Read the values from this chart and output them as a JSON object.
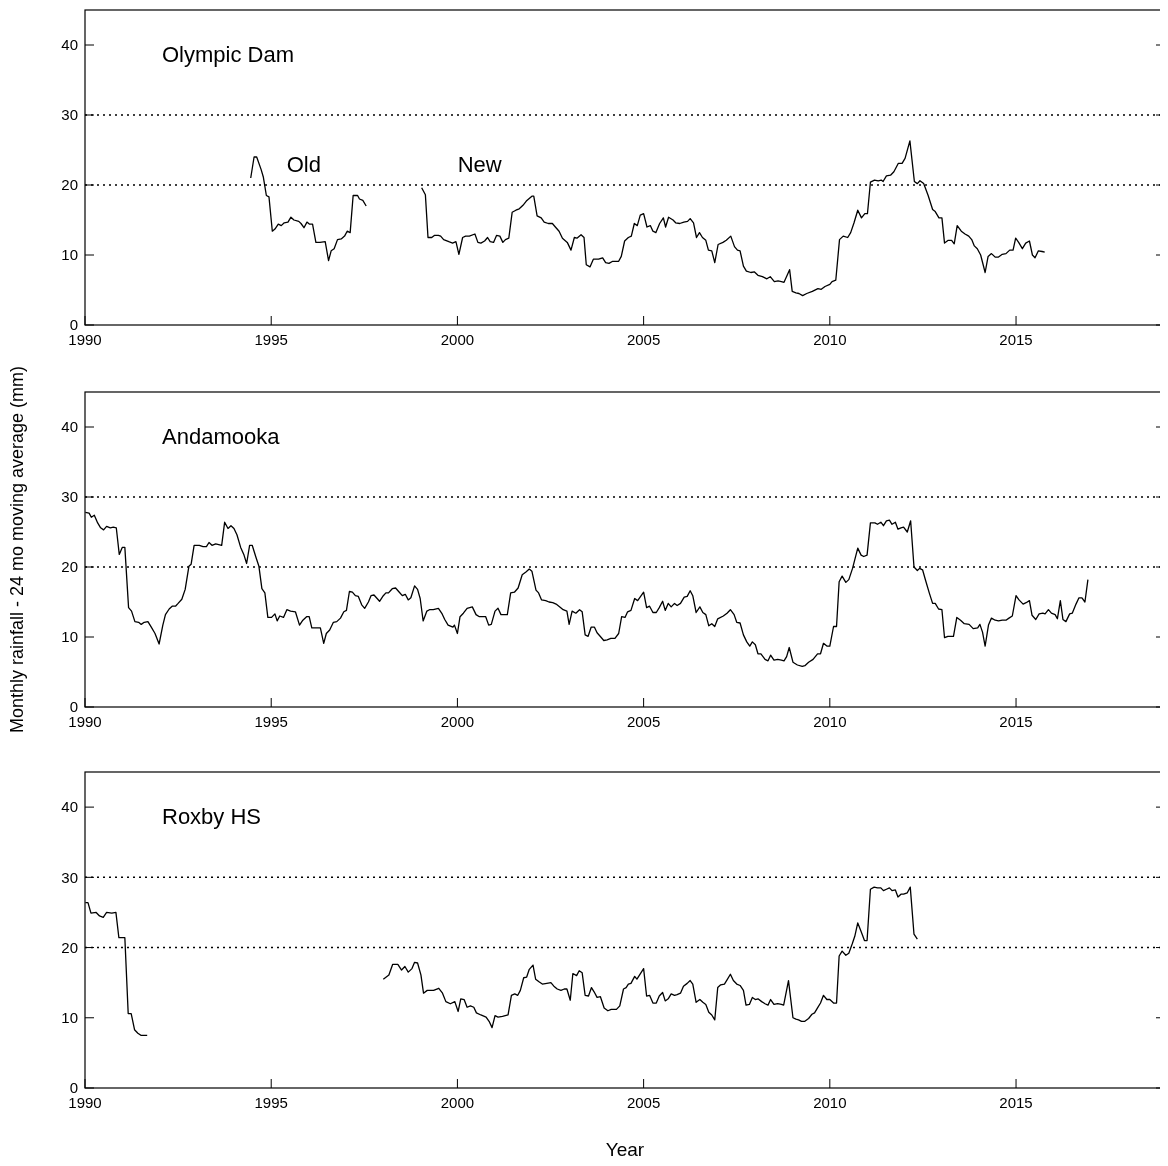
{
  "chart_data": [
    {
      "type": "line",
      "title": "Olympic Dam",
      "xlim": [
        1990,
        2019
      ],
      "xticks": [
        1990,
        1995,
        2000,
        2005,
        2010,
        2015
      ],
      "ylim": [
        0,
        45
      ],
      "yticks": [
        0,
        10,
        20,
        30,
        40
      ],
      "ref_lines": [
        {
          "axis": "y",
          "value": 20,
          "line_style": "dotted"
        },
        {
          "axis": "y",
          "value": 30,
          "line_style": "dotted"
        }
      ],
      "series": [
        {
          "name": "Old",
          "color": "#000000",
          "x": [
            1994.45,
            1994.54,
            1994.61,
            1994.73,
            1994.79,
            1994.87,
            1994.94,
            1995.03,
            1995.1,
            1995.19,
            1995.27,
            1995.35,
            1995.45,
            1995.53,
            1995.61,
            1995.74,
            1995.8,
            1995.88,
            1995.96,
            1996.03,
            1996.11,
            1996.2,
            1996.31,
            1996.45,
            1996.54,
            1996.61,
            1996.69,
            1996.78,
            1996.88,
            1996.97,
            1997.04,
            1997.12,
            1997.2,
            1997.32,
            1997.37,
            1997.46,
            1997.55
          ],
          "values": [
            21.0,
            24.0,
            24.0,
            22.2,
            21.1,
            18.5,
            18.3,
            13.4,
            13.7,
            14.4,
            14.2,
            14.6,
            14.7,
            15.4,
            15.0,
            14.8,
            14.5,
            13.9,
            14.7,
            14.4,
            14.4,
            11.8,
            11.8,
            11.9,
            9.2,
            10.6,
            10.9,
            12.2,
            12.3,
            12.7,
            13.4,
            13.2,
            18.5,
            18.5,
            18.0,
            17.8,
            17.0
          ]
        },
        {
          "name": "New",
          "color": "#000000",
          "x": [
            1999.04,
            1999.14,
            1999.21,
            1999.31,
            1999.38,
            1999.49,
            1999.55,
            1999.63,
            1999.77,
            1999.87,
            1999.96,
            2000.04,
            2000.14,
            2000.22,
            2000.32,
            2000.47,
            2000.55,
            2000.63,
            2000.73,
            2000.81,
            2000.88,
            2000.97,
            2001.05,
            2001.14,
            2001.22,
            2001.29,
            2001.38,
            2001.47,
            2001.57,
            2001.66,
            2001.76,
            2001.85,
            2002.0,
            2002.05,
            2002.14,
            2002.25,
            2002.33,
            2002.44,
            2002.55,
            2002.63,
            2002.73,
            2002.82,
            2002.95,
            2003.05,
            2003.14,
            2003.21,
            2003.32,
            2003.4,
            2003.46,
            2003.56,
            2003.65,
            2003.79,
            2003.9,
            2003.98,
            2004.07,
            2004.17,
            2004.33,
            2004.4,
            2004.49,
            2004.59,
            2004.67,
            2004.75,
            2004.83,
            2004.91,
            2005.0,
            2005.09,
            2005.18,
            2005.25,
            2005.33,
            2005.43,
            2005.53,
            2005.59,
            2005.67,
            2005.79,
            2005.86,
            2005.97,
            2006.08,
            2006.18,
            2006.25,
            2006.34,
            2006.42,
            2006.5,
            2006.58,
            2006.67,
            2006.74,
            2006.83,
            2006.91,
            2007.0,
            2007.13,
            2007.22,
            2007.34,
            2007.44,
            2007.52,
            2007.59,
            2007.68,
            2007.76,
            2007.88,
            2007.97,
            2008.07,
            2008.19,
            2008.31,
            2008.4,
            2008.51,
            2008.61,
            2008.7,
            2008.77,
            2008.92,
            2008.99,
            2009.09,
            2009.17,
            2009.27,
            2009.38,
            2009.53,
            2009.68,
            2009.77,
            2009.87,
            2010.0,
            2010.06,
            2010.16,
            2010.26,
            2010.36,
            2010.48,
            2010.56,
            2010.65,
            2010.75,
            2010.85,
            2010.94,
            2011.01,
            2011.09,
            2011.2,
            2011.3,
            2011.38,
            2011.43,
            2011.52,
            2011.63,
            2011.72,
            2011.84,
            2011.94,
            2012.02,
            2012.15,
            2012.27,
            2012.35,
            2012.42,
            2012.52,
            2012.64,
            2012.76,
            2012.83,
            2012.93,
            2013.01,
            2013.08,
            2013.18,
            2013.27,
            2013.34,
            2013.42,
            2013.53,
            2013.63,
            2013.73,
            2013.81,
            2013.88,
            2013.96,
            2014.05,
            2014.17,
            2014.25,
            2014.34,
            2014.44,
            2014.53,
            2014.63,
            2014.73,
            2014.83,
            2014.92,
            2014.99,
            2015.07,
            2015.17,
            2015.26,
            2015.36,
            2015.44,
            2015.51,
            2015.6,
            2015.7,
            2015.77
          ],
          "values": [
            19.6,
            18.6,
            12.5,
            12.5,
            12.8,
            12.8,
            12.7,
            12.2,
            11.9,
            11.7,
            11.9,
            10.1,
            12.5,
            12.7,
            12.7,
            13.0,
            11.8,
            11.7,
            12.0,
            12.5,
            11.9,
            11.8,
            12.8,
            12.7,
            11.8,
            12.2,
            12.4,
            16.1,
            16.4,
            16.6,
            17.1,
            17.7,
            18.4,
            18.4,
            15.6,
            15.3,
            14.7,
            14.5,
            14.5,
            14.0,
            13.4,
            12.4,
            11.8,
            10.7,
            12.5,
            12.4,
            12.9,
            12.5,
            8.6,
            8.3,
            9.4,
            9.4,
            9.6,
            8.9,
            8.8,
            9.1,
            9.1,
            9.8,
            12.0,
            12.5,
            12.7,
            14.5,
            14.2,
            15.7,
            15.9,
            14.0,
            14.2,
            13.4,
            13.2,
            14.5,
            15.3,
            14.0,
            15.4,
            15.0,
            14.6,
            14.5,
            14.7,
            14.8,
            15.2,
            14.6,
            12.5,
            13.2,
            12.5,
            12.1,
            10.7,
            10.6,
            8.9,
            11.5,
            11.8,
            12.1,
            12.7,
            11.2,
            10.7,
            10.6,
            8.4,
            7.7,
            7.5,
            7.6,
            7.1,
            6.9,
            6.6,
            6.9,
            6.2,
            6.3,
            6.2,
            6.1,
            7.9,
            4.8,
            4.6,
            4.5,
            4.2,
            4.5,
            4.8,
            5.2,
            5.1,
            5.5,
            5.8,
            6.2,
            6.4,
            12.2,
            12.7,
            12.5,
            13.2,
            14.6,
            16.4,
            15.3,
            15.9,
            15.9,
            20.4,
            20.7,
            20.6,
            20.7,
            20.5,
            21.3,
            21.4,
            21.9,
            23.1,
            23.1,
            23.8,
            26.3,
            20.5,
            20.2,
            20.6,
            20.2,
            18.5,
            16.5,
            16.2,
            15.3,
            15.3,
            11.7,
            12.1,
            12.1,
            11.6,
            14.2,
            13.4,
            13.0,
            12.7,
            12.2,
            11.3,
            10.9,
            10.0,
            7.5,
            9.8,
            10.2,
            9.7,
            9.7,
            10.1,
            10.2,
            10.7,
            10.7,
            12.4,
            11.8,
            10.9,
            11.7,
            12.0,
            10.0,
            9.6,
            10.6,
            10.5,
            10.4
          ]
        }
      ]
    },
    {
      "type": "line",
      "title": "Andamooka",
      "ylabel": "Monthly rainfall - 24 mo moving average (mm)",
      "xlim": [
        1990,
        2019
      ],
      "xticks": [
        1990,
        1995,
        2000,
        2005,
        2010,
        2015
      ],
      "ylim": [
        0,
        45
      ],
      "yticks": [
        0,
        10,
        20,
        30,
        40
      ],
      "ref_lines": [
        {
          "axis": "y",
          "value": 20,
          "line_style": "dotted"
        },
        {
          "axis": "y",
          "value": 30,
          "line_style": "dotted"
        }
      ],
      "series": [
        {
          "color": "#000000",
          "x": [
            1990.01,
            1990.11,
            1990.17,
            1990.25,
            1990.34,
            1990.42,
            1990.5,
            1990.58,
            1990.68,
            1990.76,
            1990.84,
            1990.92,
            1991.0,
            1991.07,
            1991.17,
            1991.25,
            1991.34,
            1991.44,
            1991.51,
            1991.59,
            1991.69,
            1991.78,
            1991.88,
            1991.99,
            1992.09,
            1992.16,
            1992.26,
            1992.34,
            1992.43,
            1992.5,
            1992.6,
            1992.69,
            1992.79,
            1992.85,
            1992.93,
            1993.07,
            1993.17,
            1993.26,
            1993.33,
            1993.41,
            1993.51,
            1993.67,
            1993.75,
            1993.84,
            1993.92,
            1994.0,
            1994.08,
            1994.18,
            1994.27,
            1994.34,
            1994.42,
            1994.49,
            1994.59,
            1994.67,
            1994.75,
            1994.83,
            1994.91,
            1995.01,
            1995.1,
            1995.16,
            1995.23,
            1995.33,
            1995.42,
            1995.52,
            1995.65,
            1995.76,
            1995.85,
            1995.95,
            1996.02,
            1996.09,
            1996.19,
            1996.32,
            1996.41,
            1996.48,
            1996.57,
            1996.67,
            1996.76,
            1996.86,
            1996.95,
            1997.02,
            1997.1,
            1997.18,
            1997.26,
            1997.34,
            1997.43,
            1997.51,
            1997.61,
            1997.68,
            1997.76,
            1997.91,
            1998.01,
            1998.08,
            1998.15,
            1998.25,
            1998.34,
            1998.44,
            1998.52,
            1998.6,
            1998.68,
            1998.75,
            1998.85,
            1998.93,
            1999.0,
            1999.08,
            1999.18,
            1999.25,
            1999.35,
            1999.49,
            1999.59,
            1999.66,
            1999.75,
            1999.88,
            1999.92,
            2000.0,
            2000.07,
            2000.16,
            2000.26,
            2000.4,
            2000.5,
            2000.59,
            2000.76,
            2000.84,
            2000.91,
            2001.01,
            2001.09,
            2001.17,
            2001.34,
            2001.43,
            2001.53,
            2001.63,
            2001.74,
            2001.84,
            2001.93,
            2002.0,
            2002.11,
            2002.18,
            2002.26,
            2002.37,
            2002.46,
            2002.56,
            2002.65,
            2002.75,
            2002.84,
            2002.94,
            2003.0,
            2003.08,
            2003.18,
            2003.28,
            2003.35,
            2003.43,
            2003.51,
            2003.59,
            2003.68,
            2003.75,
            2003.85,
            2003.93,
            2004.02,
            2004.12,
            2004.23,
            2004.33,
            2004.41,
            2004.5,
            2004.57,
            2004.66,
            2004.76,
            2004.84,
            2005.0,
            2005.08,
            2005.16,
            2005.25,
            2005.34,
            2005.42,
            2005.51,
            2005.58,
            2005.66,
            2005.74,
            2005.83,
            2005.9,
            2005.99,
            2006.09,
            2006.17,
            2006.25,
            2006.32,
            2006.41,
            2006.51,
            2006.59,
            2006.67,
            2006.75,
            2006.83,
            2006.91,
            2006.99,
            2007.14,
            2007.24,
            2007.33,
            2007.43,
            2007.5,
            2007.59,
            2007.68,
            2007.77,
            2007.85,
            2007.92,
            2008.0,
            2008.07,
            2008.15,
            2008.26,
            2008.34,
            2008.41,
            2008.5,
            2008.6,
            2008.7,
            2008.77,
            2008.84,
            2008.91,
            2009.01,
            2009.13,
            2009.26,
            2009.33,
            2009.43,
            2009.55,
            2009.67,
            2009.75,
            2009.83,
            2009.92,
            2010.0,
            2010.1,
            2010.18,
            2010.25,
            2010.33,
            2010.43,
            2010.51,
            2010.61,
            2010.75,
            2010.84,
            2010.91,
            2011.0,
            2011.09,
            2011.21,
            2011.28,
            2011.37,
            2011.44,
            2011.52,
            2011.6,
            2011.67,
            2011.76,
            2011.83,
            2011.91,
            2011.98,
            2012.08,
            2012.17,
            2012.26,
            2012.35,
            2012.41,
            2012.49,
            2012.57,
            2012.67,
            2012.76,
            2012.83,
            2012.92,
            2013.01,
            2013.08,
            2013.17,
            2013.32,
            2013.41,
            2013.51,
            2013.61,
            2013.74,
            2013.85,
            2013.97,
            2014.03,
            2014.1,
            2014.17,
            2014.26,
            2014.34,
            2014.44,
            2014.53,
            2014.63,
            2014.73,
            2014.81,
            2014.9,
            2015.0,
            2015.08,
            2015.19,
            2015.27,
            2015.36,
            2015.43,
            2015.53,
            2015.62,
            2015.72,
            2015.78,
            2015.87,
            2015.95,
            2016.05,
            2016.11,
            2016.19,
            2016.26,
            2016.34,
            2016.44,
            2016.51,
            2016.61,
            2016.69,
            2016.77,
            2016.85,
            2016.93
          ],
          "values": [
            27.8,
            27.7,
            27.1,
            27.4,
            26.3,
            25.6,
            25.3,
            25.8,
            25.6,
            25.7,
            25.6,
            21.8,
            22.8,
            22.8,
            14.2,
            13.7,
            12.2,
            12.1,
            11.8,
            12.1,
            12.2,
            11.4,
            10.5,
            9.0,
            11.7,
            13.2,
            14.0,
            14.4,
            14.4,
            14.8,
            15.4,
            16.8,
            20.1,
            20.4,
            23.1,
            23.1,
            22.9,
            22.9,
            23.5,
            23.1,
            23.3,
            23.1,
            26.4,
            25.5,
            25.9,
            25.5,
            24.6,
            22.8,
            21.7,
            20.5,
            23.1,
            23.1,
            21.4,
            20.1,
            16.9,
            16.3,
            12.8,
            12.8,
            13.3,
            12.3,
            13.0,
            12.8,
            13.9,
            13.7,
            13.6,
            11.7,
            12.4,
            12.9,
            12.9,
            11.3,
            11.3,
            11.3,
            9.1,
            10.5,
            11.0,
            12.1,
            12.2,
            12.7,
            13.6,
            13.8,
            16.5,
            16.4,
            15.9,
            15.8,
            14.6,
            14.1,
            15.0,
            15.9,
            16.0,
            15.1,
            15.9,
            16.3,
            16.3,
            16.9,
            17.0,
            16.4,
            15.9,
            16.1,
            15.3,
            15.6,
            17.3,
            16.8,
            15.5,
            12.3,
            13.7,
            13.9,
            13.9,
            14.1,
            13.3,
            12.5,
            11.7,
            11.4,
            11.7,
            10.5,
            12.9,
            13.4,
            14.1,
            14.3,
            13.2,
            12.9,
            12.9,
            11.7,
            11.8,
            13.7,
            14.1,
            13.2,
            13.2,
            16.3,
            16.4,
            17.0,
            18.9,
            19.3,
            19.7,
            19.4,
            16.7,
            16.3,
            15.3,
            15.2,
            15.0,
            14.9,
            14.7,
            14.3,
            13.9,
            13.7,
            11.8,
            13.7,
            13.4,
            13.9,
            13.6,
            10.3,
            10.1,
            11.4,
            11.4,
            10.6,
            10.0,
            9.5,
            9.6,
            9.8,
            9.8,
            10.5,
            12.9,
            12.8,
            13.6,
            13.8,
            15.5,
            15.2,
            16.4,
            14.2,
            14.4,
            13.5,
            13.5,
            14.2,
            15.1,
            13.8,
            14.8,
            14.3,
            14.8,
            14.5,
            14.8,
            15.7,
            15.8,
            16.6,
            15.9,
            13.5,
            14.3,
            13.5,
            13.2,
            11.6,
            11.9,
            11.5,
            12.6,
            13.0,
            13.4,
            13.9,
            13.2,
            12.1,
            12.0,
            10.3,
            9.3,
            8.7,
            9.3,
            8.9,
            7.6,
            7.6,
            6.8,
            6.6,
            7.4,
            6.7,
            6.8,
            6.7,
            6.6,
            7.2,
            8.5,
            6.4,
            6.0,
            5.8,
            5.9,
            6.4,
            6.8,
            7.6,
            7.6,
            9.1,
            8.7,
            8.7,
            11.5,
            11.5,
            17.9,
            18.7,
            17.8,
            18.2,
            19.8,
            22.7,
            21.7,
            21.5,
            21.7,
            26.3,
            26.3,
            26.1,
            26.4,
            25.9,
            26.6,
            26.7,
            26.1,
            26.4,
            25.4,
            25.6,
            25.7,
            25.0,
            26.6,
            20.0,
            19.5,
            19.8,
            19.6,
            18.1,
            16.3,
            14.8,
            14.8,
            14.0,
            13.9,
            9.9,
            10.1,
            10.1,
            12.8,
            12.4,
            11.9,
            11.8,
            11.2,
            11.3,
            11.8,
            10.7,
            8.7,
            11.7,
            12.7,
            12.4,
            12.3,
            12.4,
            12.4,
            12.7,
            13.0,
            15.9,
            15.3,
            14.7,
            14.9,
            15.2,
            13.1,
            12.5,
            13.3,
            13.4,
            13.3,
            13.9,
            13.4,
            13.2,
            12.6,
            15.2,
            12.5,
            12.2,
            13.3,
            13.4,
            14.7,
            15.6,
            15.6,
            15.0,
            18.2
          ]
        }
      ]
    },
    {
      "type": "line",
      "title": "Roxby HS",
      "xlabel": "Year",
      "xlim": [
        1990,
        2019
      ],
      "xticks": [
        1990,
        1995,
        2000,
        2005,
        2010,
        2015
      ],
      "ylim": [
        0,
        45
      ],
      "yticks": [
        0,
        10,
        20,
        30,
        40
      ],
      "ref_lines": [
        {
          "axis": "y",
          "value": 20,
          "line_style": "dotted"
        },
        {
          "axis": "y",
          "value": 30,
          "line_style": "dotted"
        }
      ],
      "series": [
        {
          "color": "#000000",
          "x": [
            1990.01,
            1990.08,
            1990.16,
            1990.3,
            1990.39,
            1990.49,
            1990.58,
            1990.72,
            1990.83,
            1990.91,
            1991.07,
            1991.16,
            1991.24,
            1991.33,
            1991.42,
            1991.5,
            1991.67
          ],
          "values": [
            26.4,
            26.4,
            24.9,
            25.0,
            24.5,
            24.3,
            25.0,
            24.9,
            25.0,
            21.4,
            21.4,
            10.6,
            10.6,
            8.3,
            7.8,
            7.5,
            7.5
          ]
        },
        {
          "color": "#000000",
          "x": [
            1998.01,
            1998.16,
            1998.26,
            1998.4,
            1998.5,
            1998.59,
            1998.68,
            1998.78,
            1998.85,
            1998.93,
            1999.02,
            1999.09,
            1999.19,
            1999.36,
            1999.5,
            1999.6,
            1999.69,
            1999.81,
            1999.93,
            2000.02,
            2000.09,
            2000.18,
            2000.26,
            2000.35,
            2000.44,
            2000.51,
            2000.63,
            2000.77,
            2000.86,
            2000.93,
            2001.01,
            2001.09,
            2001.21,
            2001.36,
            2001.45,
            2001.54,
            2001.62,
            2001.69,
            2001.78,
            2001.86,
            2001.93,
            2002.03,
            2002.1,
            2002.2,
            2002.28,
            2002.4,
            2002.51,
            2002.59,
            2002.68,
            2002.78,
            2002.87,
            2002.94,
            2003.03,
            2003.1,
            2003.2,
            2003.27,
            2003.35,
            2003.43,
            2003.52,
            2003.6,
            2003.67,
            2003.75,
            2003.84,
            2003.94,
            2004.04,
            2004.13,
            2004.27,
            2004.36,
            2004.46,
            2004.53,
            2004.59,
            2004.66,
            2004.76,
            2004.82,
            2005.0,
            2005.08,
            2005.16,
            2005.25,
            2005.34,
            2005.42,
            2005.51,
            2005.58,
            2005.66,
            2005.74,
            2005.83,
            2005.9,
            2005.99,
            2006.07,
            2006.17,
            2006.25,
            2006.32,
            2006.41,
            2006.51,
            2006.59,
            2006.67,
            2006.75,
            2006.83,
            2006.91,
            2006.99,
            2007.07,
            2007.17,
            2007.24,
            2007.33,
            2007.41,
            2007.5,
            2007.59,
            2007.68,
            2007.75,
            2007.84,
            2007.92,
            2008.0,
            2008.07,
            2008.17,
            2008.26,
            2008.34,
            2008.41,
            2008.5,
            2008.6,
            2008.7,
            2008.76,
            2008.89,
            2009.01,
            2009.09,
            2009.16,
            2009.24,
            2009.33,
            2009.43,
            2009.52,
            2009.59,
            2009.67,
            2009.75,
            2009.83,
            2009.92,
            2010.0,
            2010.1,
            2010.18,
            2010.25,
            2010.33,
            2010.43,
            2010.51,
            2010.6,
            2010.67,
            2010.75,
            2010.84,
            2010.93,
            2011.0,
            2011.09,
            2011.19,
            2011.28,
            2011.37,
            2011.44,
            2011.52,
            2011.6,
            2011.67,
            2011.76,
            2011.83,
            2011.91,
            2011.98,
            2012.08,
            2012.16,
            2012.26,
            2012.35
          ],
          "values": [
            15.5,
            16.1,
            17.6,
            17.6,
            16.8,
            17.3,
            16.5,
            17.0,
            17.9,
            17.8,
            16.1,
            13.5,
            13.9,
            13.9,
            14.2,
            13.5,
            12.3,
            12.0,
            12.3,
            10.9,
            12.7,
            12.6,
            11.5,
            11.7,
            11.5,
            10.7,
            10.4,
            10.1,
            9.4,
            8.6,
            10.3,
            10.1,
            10.2,
            10.4,
            13.2,
            13.4,
            13.2,
            13.9,
            15.7,
            15.8,
            16.9,
            17.5,
            15.5,
            15.1,
            14.8,
            14.9,
            15.0,
            14.5,
            14.1,
            13.9,
            14.1,
            14.1,
            12.5,
            16.3,
            16.0,
            16.7,
            16.4,
            13.2,
            13.1,
            14.3,
            13.7,
            12.9,
            13.0,
            11.4,
            11.0,
            11.2,
            11.2,
            11.7,
            14.1,
            14.3,
            14.8,
            14.9,
            15.9,
            15.5,
            17.0,
            13.1,
            13.2,
            12.1,
            12.1,
            13.1,
            13.6,
            12.4,
            12.7,
            13.4,
            13.2,
            13.3,
            13.5,
            14.5,
            14.9,
            15.3,
            14.8,
            12.2,
            12.6,
            12.2,
            11.9,
            10.8,
            10.4,
            9.7,
            14.3,
            14.7,
            14.8,
            15.4,
            16.2,
            15.3,
            14.8,
            14.6,
            13.9,
            11.8,
            11.9,
            12.9,
            12.6,
            12.7,
            12.3,
            12.0,
            11.8,
            12.6,
            11.9,
            12.0,
            11.9,
            11.8,
            15.3,
            10.0,
            9.8,
            9.7,
            9.5,
            9.5,
            9.9,
            10.5,
            10.7,
            11.4,
            12.1,
            13.2,
            12.6,
            12.6,
            12.1,
            12.1,
            18.8,
            19.5,
            18.9,
            19.2,
            20.5,
            21.6,
            23.5,
            22.3,
            21.0,
            21.0,
            28.3,
            28.6,
            28.5,
            28.5,
            28.1,
            28.3,
            28.5,
            28.1,
            28.2,
            27.2,
            27.6,
            27.6,
            27.8,
            28.6,
            21.9,
            21.2
          ]
        }
      ]
    }
  ]
}
